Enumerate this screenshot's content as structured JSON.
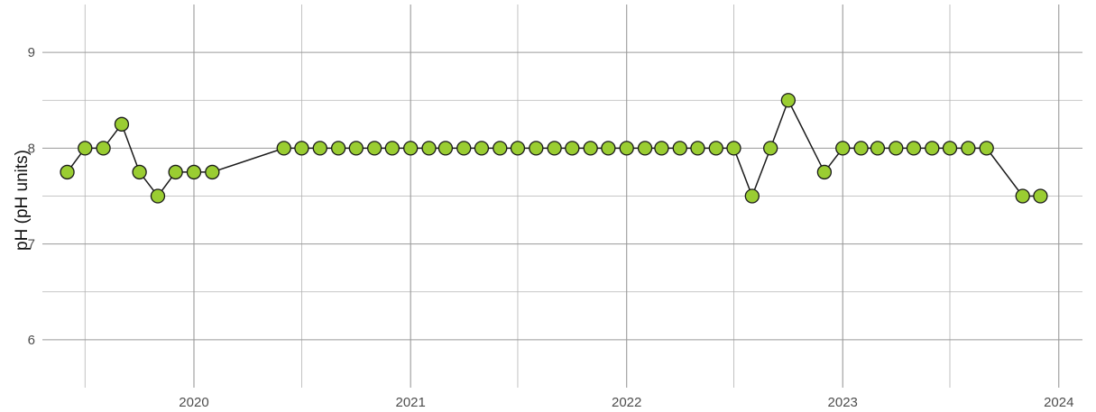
{
  "chart_data": {
    "type": "line",
    "title": "",
    "xlabel": "",
    "ylabel": "pH (pH units)",
    "ylim": [
      5.5,
      9.5
    ],
    "xlim": [
      "2019-04-20",
      "2024-02-10"
    ],
    "grid": true,
    "y_ticks": [
      "6",
      "7",
      "8",
      "9"
    ],
    "x_ticks": [
      "2020",
      "2021",
      "2022",
      "2023",
      "2024"
    ],
    "x_tick_dates": [
      "2020-01-01",
      "2021-01-01",
      "2022-01-01",
      "2023-01-01",
      "2024-01-01"
    ],
    "x_minor_dates": [
      "2019-07-01",
      "2020-07-01",
      "2021-07-01",
      "2022-07-01",
      "2023-07-01"
    ],
    "point_color": "#9acd32",
    "line_color": "#1a1a1a",
    "series": [
      {
        "x": [
          "2019-06-01",
          "2019-07-01",
          "2019-08-01",
          "2019-09-01",
          "2019-10-01",
          "2019-11-01",
          "2019-12-01",
          "2020-01-01",
          "2020-02-01",
          "2020-06-01",
          "2020-07-01",
          "2020-08-01",
          "2020-09-01",
          "2020-10-01",
          "2020-11-01",
          "2020-12-01",
          "2021-01-01",
          "2021-02-01",
          "2021-03-01",
          "2021-04-01",
          "2021-05-01",
          "2021-06-01",
          "2021-07-01",
          "2021-08-01",
          "2021-09-01",
          "2021-10-01",
          "2021-11-01",
          "2021-12-01",
          "2022-01-01",
          "2022-02-01",
          "2022-03-01",
          "2022-04-01",
          "2022-05-01",
          "2022-06-01",
          "2022-07-01",
          "2022-08-01",
          "2022-09-01",
          "2022-10-01",
          "2022-12-01",
          "2023-01-01",
          "2023-02-01",
          "2023-03-01",
          "2023-04-01",
          "2023-05-01",
          "2023-06-01",
          "2023-07-01",
          "2023-08-01",
          "2023-09-01",
          "2023-11-01",
          "2023-12-01"
        ],
        "values": [
          7.75,
          8,
          8,
          8.25,
          7.75,
          7.5,
          7.75,
          7.75,
          7.75,
          8,
          8,
          8,
          8,
          8,
          8,
          8,
          8,
          8,
          8,
          8,
          8,
          8,
          8,
          8,
          8,
          8,
          8,
          8,
          8,
          8,
          8,
          8,
          8,
          8,
          8,
          7.5,
          8,
          8.5,
          7.75,
          8,
          8,
          8,
          8,
          8,
          8,
          8,
          8,
          8,
          7.5,
          7.5
        ]
      }
    ]
  }
}
